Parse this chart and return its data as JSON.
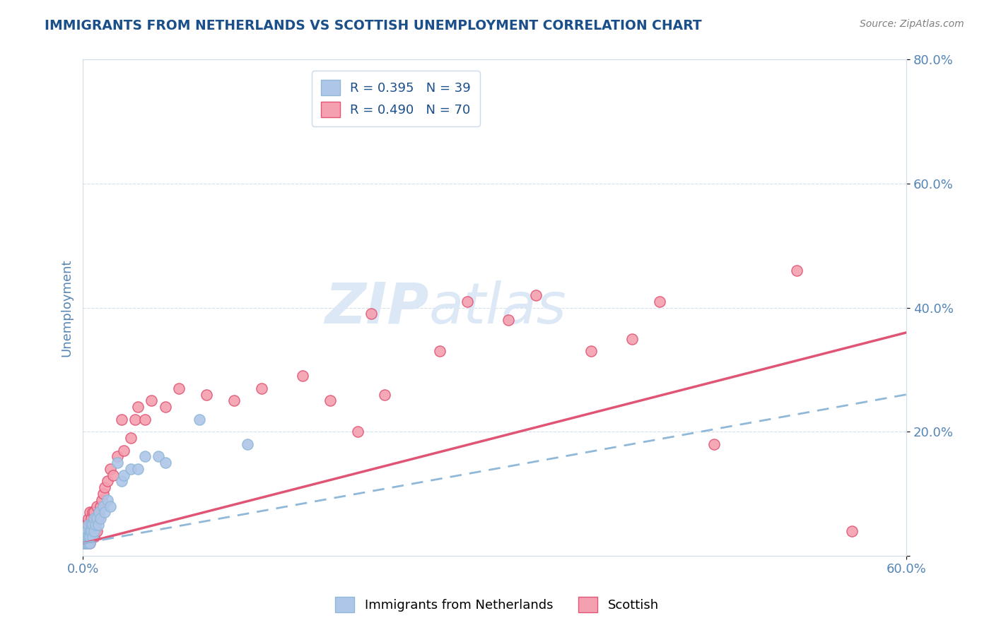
{
  "title": "IMMIGRANTS FROM NETHERLANDS VS SCOTTISH UNEMPLOYMENT CORRELATION CHART",
  "source": "Source: ZipAtlas.com",
  "ylabel": "Unemployment",
  "xlim": [
    0.0,
    0.6
  ],
  "ylim": [
    0.0,
    0.8
  ],
  "xticks": [
    0.0,
    0.6
  ],
  "yticks": [
    0.0,
    0.2,
    0.4,
    0.6,
    0.8
  ],
  "xtick_labels": [
    "0.0%",
    "60.0%"
  ],
  "ytick_labels": [
    "",
    "20.0%",
    "40.0%",
    "60.0%",
    "80.0%"
  ],
  "blue_R": 0.395,
  "blue_N": 39,
  "pink_R": 0.49,
  "pink_N": 70,
  "blue_color": "#aec6e8",
  "pink_color": "#f4a0b0",
  "blue_line_color": "#90b8d8",
  "pink_line_color": "#e05575",
  "watermark_color": "#dce8f5",
  "legend_label_blue": "Immigrants from Netherlands",
  "legend_label_pink": "Scottish",
  "title_color": "#1a4f8a",
  "axis_color": "#5585b5",
  "grid_color": "#d0dce8",
  "blue_scatter_x": [
    0.001,
    0.001,
    0.002,
    0.002,
    0.002,
    0.003,
    0.003,
    0.003,
    0.004,
    0.004,
    0.004,
    0.005,
    0.005,
    0.005,
    0.006,
    0.006,
    0.007,
    0.007,
    0.008,
    0.008,
    0.009,
    0.01,
    0.011,
    0.012,
    0.013,
    0.015,
    0.016,
    0.018,
    0.02,
    0.025,
    0.028,
    0.03,
    0.035,
    0.04,
    0.045,
    0.055,
    0.06,
    0.085,
    0.12
  ],
  "blue_scatter_y": [
    0.02,
    0.03,
    0.02,
    0.04,
    0.03,
    0.02,
    0.04,
    0.03,
    0.02,
    0.05,
    0.03,
    0.02,
    0.04,
    0.03,
    0.05,
    0.04,
    0.03,
    0.05,
    0.04,
    0.06,
    0.05,
    0.06,
    0.05,
    0.07,
    0.06,
    0.08,
    0.07,
    0.09,
    0.08,
    0.15,
    0.12,
    0.13,
    0.14,
    0.14,
    0.16,
    0.16,
    0.15,
    0.22,
    0.18
  ],
  "pink_scatter_x": [
    0.001,
    0.001,
    0.001,
    0.002,
    0.002,
    0.002,
    0.002,
    0.003,
    0.003,
    0.003,
    0.003,
    0.004,
    0.004,
    0.004,
    0.004,
    0.005,
    0.005,
    0.005,
    0.005,
    0.006,
    0.006,
    0.006,
    0.007,
    0.007,
    0.007,
    0.008,
    0.008,
    0.008,
    0.009,
    0.009,
    0.01,
    0.01,
    0.01,
    0.011,
    0.012,
    0.013,
    0.014,
    0.015,
    0.016,
    0.018,
    0.02,
    0.022,
    0.025,
    0.028,
    0.03,
    0.035,
    0.038,
    0.04,
    0.045,
    0.05,
    0.06,
    0.07,
    0.09,
    0.11,
    0.13,
    0.16,
    0.18,
    0.2,
    0.21,
    0.22,
    0.26,
    0.28,
    0.31,
    0.33,
    0.37,
    0.4,
    0.42,
    0.46,
    0.52,
    0.56
  ],
  "pink_scatter_y": [
    0.02,
    0.03,
    0.04,
    0.02,
    0.03,
    0.04,
    0.05,
    0.02,
    0.03,
    0.04,
    0.05,
    0.02,
    0.03,
    0.04,
    0.06,
    0.02,
    0.03,
    0.05,
    0.07,
    0.03,
    0.04,
    0.06,
    0.03,
    0.05,
    0.07,
    0.03,
    0.05,
    0.07,
    0.04,
    0.06,
    0.04,
    0.06,
    0.08,
    0.06,
    0.07,
    0.08,
    0.09,
    0.1,
    0.11,
    0.12,
    0.14,
    0.13,
    0.16,
    0.22,
    0.17,
    0.19,
    0.22,
    0.24,
    0.22,
    0.25,
    0.24,
    0.27,
    0.26,
    0.25,
    0.27,
    0.29,
    0.25,
    0.2,
    0.39,
    0.26,
    0.33,
    0.41,
    0.38,
    0.42,
    0.33,
    0.35,
    0.41,
    0.18,
    0.46,
    0.04
  ],
  "blue_line_x": [
    0.0,
    0.6
  ],
  "blue_line_y": [
    0.02,
    0.26
  ],
  "pink_line_x": [
    0.0,
    0.6
  ],
  "pink_line_y": [
    0.02,
    0.36
  ]
}
